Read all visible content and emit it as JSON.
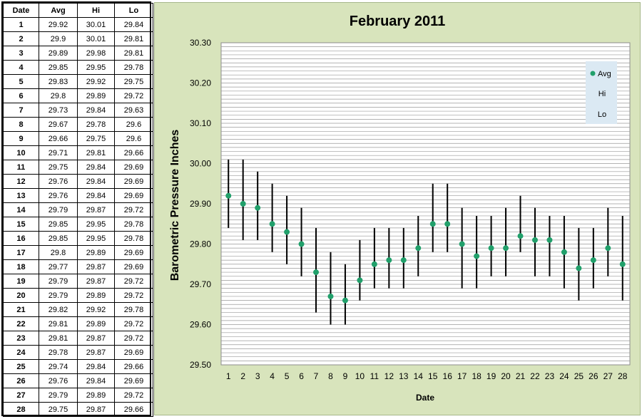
{
  "table": {
    "headers": [
      "Date",
      "Avg",
      "Hi",
      "Lo"
    ],
    "rows": [
      [
        "1",
        "29.92",
        "30.01",
        "29.84"
      ],
      [
        "2",
        "29.9",
        "30.01",
        "29.81"
      ],
      [
        "3",
        "29.89",
        "29.98",
        "29.81"
      ],
      [
        "4",
        "29.85",
        "29.95",
        "29.78"
      ],
      [
        "5",
        "29.83",
        "29.92",
        "29.75"
      ],
      [
        "6",
        "29.8",
        "29.89",
        "29.72"
      ],
      [
        "7",
        "29.73",
        "29.84",
        "29.63"
      ],
      [
        "8",
        "29.67",
        "29.78",
        "29.6"
      ],
      [
        "9",
        "29.66",
        "29.75",
        "29.6"
      ],
      [
        "10",
        "29.71",
        "29.81",
        "29.66"
      ],
      [
        "11",
        "29.75",
        "29.84",
        "29.69"
      ],
      [
        "12",
        "29.76",
        "29.84",
        "29.69"
      ],
      [
        "13",
        "29.76",
        "29.84",
        "29.69"
      ],
      [
        "14",
        "29.79",
        "29.87",
        "29.72"
      ],
      [
        "15",
        "29.85",
        "29.95",
        "29.78"
      ],
      [
        "16",
        "29.85",
        "29.95",
        "29.78"
      ],
      [
        "17",
        "29.8",
        "29.89",
        "29.69"
      ],
      [
        "18",
        "29.77",
        "29.87",
        "29.69"
      ],
      [
        "19",
        "29.79",
        "29.87",
        "29.72"
      ],
      [
        "20",
        "29.79",
        "29.89",
        "29.72"
      ],
      [
        "21",
        "29.82",
        "29.92",
        "29.78"
      ],
      [
        "22",
        "29.81",
        "29.89",
        "29.72"
      ],
      [
        "23",
        "29.81",
        "29.87",
        "29.72"
      ],
      [
        "24",
        "29.78",
        "29.87",
        "29.69"
      ],
      [
        "25",
        "29.74",
        "29.84",
        "29.66"
      ],
      [
        "26",
        "29.76",
        "29.84",
        "29.69"
      ],
      [
        "27",
        "29.79",
        "29.89",
        "29.72"
      ],
      [
        "28",
        "29.75",
        "29.87",
        "29.66"
      ]
    ]
  },
  "chart_data": {
    "type": "scatter",
    "title": "February 2011",
    "xlabel": "Date",
    "ylabel": "Barometric Pressure Inches",
    "x": [
      1,
      2,
      3,
      4,
      5,
      6,
      7,
      8,
      9,
      10,
      11,
      12,
      13,
      14,
      15,
      16,
      17,
      18,
      19,
      20,
      21,
      22,
      23,
      24,
      25,
      26,
      27,
      28
    ],
    "series": [
      {
        "name": "Avg",
        "values": [
          29.92,
          29.9,
          29.89,
          29.85,
          29.83,
          29.8,
          29.73,
          29.67,
          29.66,
          29.71,
          29.75,
          29.76,
          29.76,
          29.79,
          29.85,
          29.85,
          29.8,
          29.77,
          29.79,
          29.79,
          29.82,
          29.81,
          29.81,
          29.78,
          29.74,
          29.76,
          29.79,
          29.75
        ]
      },
      {
        "name": "Hi",
        "values": [
          30.01,
          30.01,
          29.98,
          29.95,
          29.92,
          29.89,
          29.84,
          29.78,
          29.75,
          29.81,
          29.84,
          29.84,
          29.84,
          29.87,
          29.95,
          29.95,
          29.89,
          29.87,
          29.87,
          29.89,
          29.92,
          29.89,
          29.87,
          29.87,
          29.84,
          29.84,
          29.89,
          29.87
        ]
      },
      {
        "name": "Lo",
        "values": [
          29.84,
          29.81,
          29.81,
          29.78,
          29.75,
          29.72,
          29.63,
          29.6,
          29.6,
          29.66,
          29.69,
          29.69,
          29.69,
          29.72,
          29.78,
          29.78,
          29.69,
          29.69,
          29.72,
          29.72,
          29.78,
          29.72,
          29.72,
          29.69,
          29.66,
          29.69,
          29.72,
          29.66
        ]
      }
    ],
    "ylim": [
      29.5,
      30.3
    ],
    "y_ticks": [
      "29.50",
      "29.60",
      "29.70",
      "29.80",
      "29.90",
      "30.00",
      "30.10",
      "30.20",
      "30.30"
    ],
    "y_minor_step": 0.01,
    "grid": true,
    "legend_position": "top-right",
    "colors": {
      "avg_marker": "#21a06b",
      "hi_lo_bar": "#000000",
      "chart_background": "#d8e4bc",
      "plot_background": "#ffffff",
      "legend_background": "#dbe9f3"
    }
  }
}
